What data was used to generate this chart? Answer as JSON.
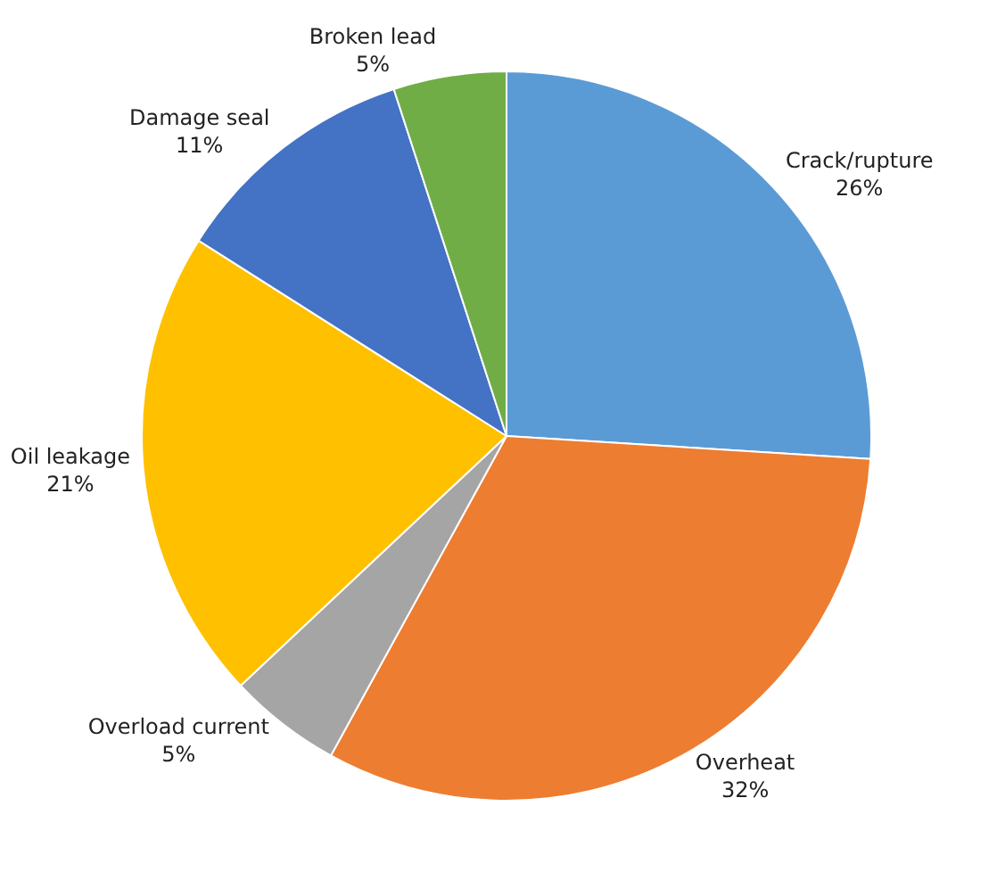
{
  "chart_data": {
    "type": "pie",
    "categories": [
      "Crack/rupture",
      "Overheat",
      "Overload current",
      "Oil leakage",
      "Damage seal",
      "Broken lead"
    ],
    "values": [
      26,
      32,
      5,
      21,
      11,
      5
    ],
    "value_labels": [
      "26%",
      "32%",
      "5%",
      "21%",
      "11%",
      "5%"
    ],
    "colors": [
      "#5b9bd5",
      "#ed7d31",
      "#a5a5a5",
      "#ffc000",
      "#4472c4",
      "#70ad47"
    ],
    "legend": false
  }
}
